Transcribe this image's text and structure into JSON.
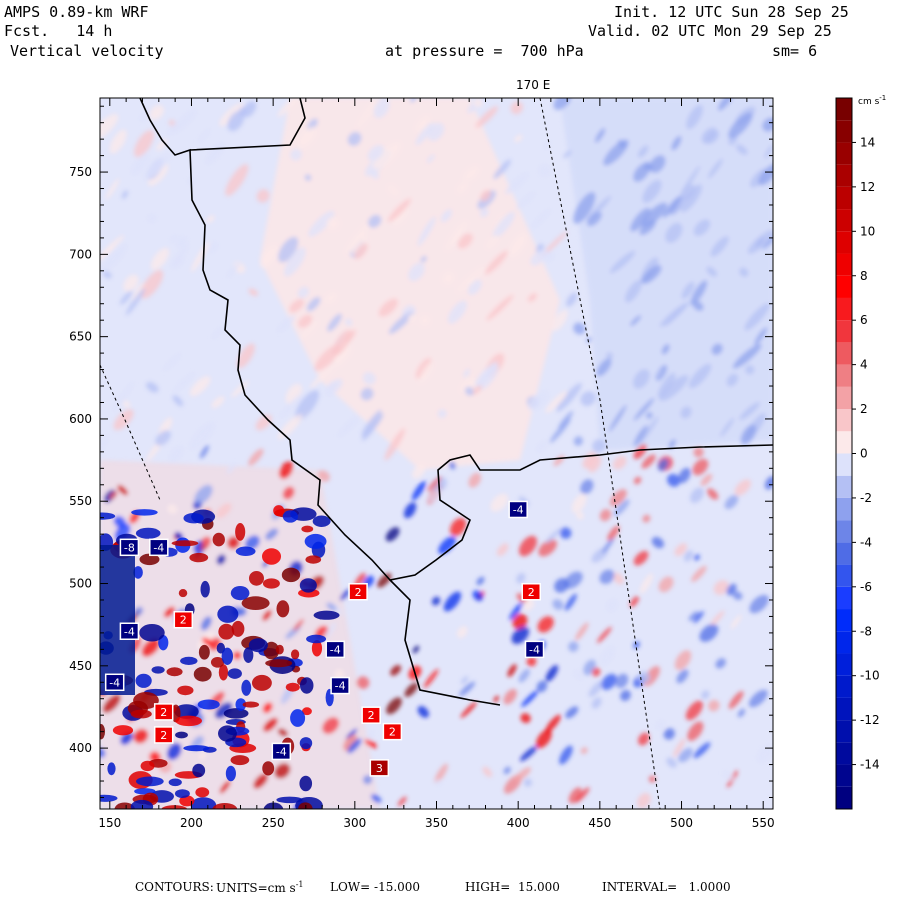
{
  "header": {
    "model": "AMPS 0.89-km WRF",
    "fcst": "Fcst.   14 h",
    "field": "Vertical velocity",
    "init": "Init. 12 UTC Sun 28 Sep 25",
    "valid": "Valid. 02 UTC Mon 29 Sep 25",
    "pressure": "at pressure =  700 hPa",
    "smoothing": "sm= 6",
    "meridian_label": "170 E"
  },
  "footer": {
    "contours_label": "CONTOURS:",
    "units_label": "UNITS=cm s",
    "units_exp": "-1",
    "low": "LOW= -15.000",
    "high": "HIGH=  15.000",
    "interval": "INTERVAL=   1.0000"
  },
  "colorbar": {
    "units": "cm s",
    "units_exp": "-1",
    "bands": [
      {
        "lo": -16,
        "hi": -15,
        "color": "#000080"
      },
      {
        "lo": -15,
        "hi": -14,
        "color": "#00058f"
      },
      {
        "lo": -14,
        "hi": -13,
        "color": "#000a9e"
      },
      {
        "lo": -13,
        "hi": -12,
        "color": "#000fad"
      },
      {
        "lo": -12,
        "hi": -11,
        "color": "#0014bd"
      },
      {
        "lo": -11,
        "hi": -10,
        "color": "#001acc"
      },
      {
        "lo": -10,
        "hi": -9,
        "color": "#001fdb"
      },
      {
        "lo": -9,
        "hi": -8,
        "color": "#0026eb"
      },
      {
        "lo": -8,
        "hi": -7,
        "color": "#002cfa"
      },
      {
        "lo": -7,
        "hi": -6,
        "color": "#1a3dff"
      },
      {
        "lo": -6,
        "hi": -5,
        "color": "#3355ee"
      },
      {
        "lo": -5,
        "hi": -4,
        "color": "#4f6ce6"
      },
      {
        "lo": -4,
        "hi": -3,
        "color": "#6d85e8"
      },
      {
        "lo": -3,
        "hi": -2,
        "color": "#8ea1ee"
      },
      {
        "lo": -2,
        "hi": -1,
        "color": "#b4c0f4"
      },
      {
        "lo": -1,
        "hi": 0,
        "color": "#dde2fb"
      },
      {
        "lo": 0,
        "hi": 1,
        "color": "#fce9ea"
      },
      {
        "lo": 1,
        "hi": 2,
        "color": "#f9c6c9"
      },
      {
        "lo": 2,
        "hi": 3,
        "color": "#f3a2a6"
      },
      {
        "lo": 3,
        "hi": 4,
        "color": "#ef7f84"
      },
      {
        "lo": 4,
        "hi": 5,
        "color": "#ee5a60"
      },
      {
        "lo": 5,
        "hi": 6,
        "color": "#f1363d"
      },
      {
        "lo": 6,
        "hi": 7,
        "color": "#f81a1e"
      },
      {
        "lo": 7,
        "hi": 8,
        "color": "#ff0000"
      },
      {
        "lo": 8,
        "hi": 9,
        "color": "#ef0000"
      },
      {
        "lo": 9,
        "hi": 10,
        "color": "#de0000"
      },
      {
        "lo": 10,
        "hi": 11,
        "color": "#cc0000"
      },
      {
        "lo": 11,
        "hi": 12,
        "color": "#bb0000"
      },
      {
        "lo": 12,
        "hi": 13,
        "color": "#aa0000"
      },
      {
        "lo": 13,
        "hi": 14,
        "color": "#990000"
      },
      {
        "lo": 14,
        "hi": 15,
        "color": "#880000"
      },
      {
        "lo": 15,
        "hi": 16,
        "color": "#780000"
      }
    ],
    "ticks": [
      -14,
      -12,
      -10,
      -8,
      -6,
      -4,
      -2,
      0,
      2,
      4,
      6,
      8,
      10,
      12,
      14
    ],
    "range": [
      -16,
      16
    ]
  },
  "chart_data": {
    "type": "heatmap",
    "title": "Vertical velocity at pressure = 700 hPa",
    "units": "cm s-1",
    "x_ticks": [
      150,
      200,
      250,
      300,
      350,
      400,
      450,
      500,
      550
    ],
    "y_ticks": [
      400,
      450,
      500,
      550,
      600,
      650,
      700,
      750
    ],
    "xlim": [
      144,
      556
    ],
    "ylim": [
      363,
      795
    ],
    "contour_low": -15.0,
    "contour_high": 15.0,
    "contour_interval": 1.0,
    "features": [
      {
        "kind": "updraft",
        "label": "2",
        "value": 2,
        "x": 195,
        "y": 478
      },
      {
        "kind": "updraft",
        "label": "2",
        "value": 2,
        "x": 183,
        "y": 422
      },
      {
        "kind": "updraft",
        "label": "2",
        "value": 2,
        "x": 183,
        "y": 408
      },
      {
        "kind": "updraft",
        "label": "2",
        "value": 2,
        "x": 302,
        "y": 495
      },
      {
        "kind": "updraft",
        "label": "2",
        "value": 2,
        "x": 310,
        "y": 420
      },
      {
        "kind": "updraft",
        "label": "2",
        "value": 2,
        "x": 408,
        "y": 495
      },
      {
        "kind": "updraft",
        "label": "2",
        "value": 2,
        "x": 323,
        "y": 410
      },
      {
        "kind": "downdraft",
        "label": "-8",
        "value": -8,
        "x": 162,
        "y": 522
      },
      {
        "kind": "downdraft",
        "label": "-4",
        "value": -4,
        "x": 180,
        "y": 522
      },
      {
        "kind": "downdraft",
        "label": "-4",
        "value": -4,
        "x": 162,
        "y": 471
      },
      {
        "kind": "downdraft",
        "label": "-4",
        "value": -4,
        "x": 153,
        "y": 440
      },
      {
        "kind": "downdraft",
        "label": "-4",
        "value": -4,
        "x": 288,
        "y": 460
      },
      {
        "kind": "downdraft",
        "label": "-4",
        "value": -4,
        "x": 291,
        "y": 438
      },
      {
        "kind": "downdraft",
        "label": "-4",
        "value": -4,
        "x": 255,
        "y": 398
      },
      {
        "kind": "downdraft",
        "label": "-4",
        "value": -4,
        "x": 410,
        "y": 460
      },
      {
        "kind": "downdraft",
        "label": "-4",
        "value": -4,
        "x": 400,
        "y": 545
      },
      {
        "kind": "updraft",
        "label": "3",
        "value": 3,
        "x": 315,
        "y": 388
      }
    ]
  }
}
